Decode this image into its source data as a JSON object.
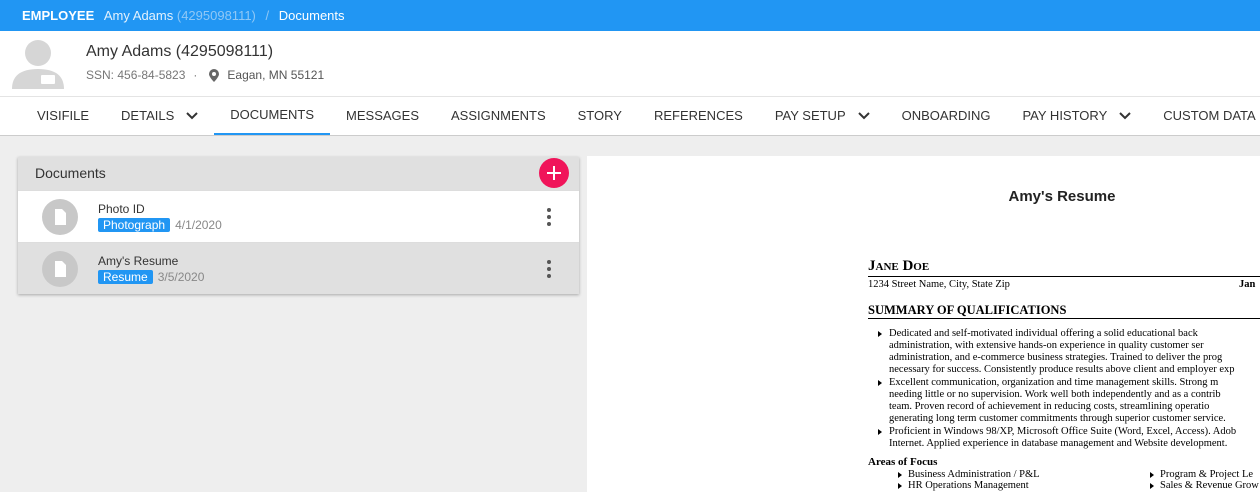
{
  "breadcrumb": {
    "section": "EMPLOYEE",
    "employee": "Amy Adams",
    "id": "(4295098111)",
    "separator": "/",
    "page": "Documents"
  },
  "employee": {
    "name": "Amy Adams (4295098111)",
    "ssn": "SSN: 456-84-5823",
    "dot": "·",
    "location": "Eagan, MN 55121"
  },
  "tabs": [
    {
      "label": "VISIFILE"
    },
    {
      "label": "DETAILS",
      "dropdown": true
    },
    {
      "label": "DOCUMENTS",
      "selected": true
    },
    {
      "label": "MESSAGES"
    },
    {
      "label": "ASSIGNMENTS"
    },
    {
      "label": "STORY"
    },
    {
      "label": "REFERENCES"
    },
    {
      "label": "PAY SETUP",
      "dropdown": true
    },
    {
      "label": "ONBOARDING"
    },
    {
      "label": "PAY HISTORY",
      "dropdown": true
    },
    {
      "label": "CUSTOM DATA"
    }
  ],
  "documents": {
    "title": "Documents",
    "items": [
      {
        "name": "Photo ID",
        "tag": "Photograph",
        "date": "4/1/2020"
      },
      {
        "name": "Amy's Resume",
        "tag": "Resume",
        "date": "3/5/2020",
        "selected": true
      }
    ]
  },
  "preview": {
    "title": "Amy's Resume",
    "resume": {
      "name": "Jane Doe",
      "address": "1234 Street Name, City, State  Zip",
      "address_right": "Jan",
      "summary_heading": "SUMMARY OF QUALIFICATIONS",
      "bullets": [
        [
          "Dedicated and self-motivated individual offering a solid educational back",
          "administration, with extensive hands-on experience in quality customer ser",
          "administration, and e-commerce business strategies. Trained to deliver the prog",
          "necessary for success. Consistently produce results above client and employer exp"
        ],
        [
          "Excellent communication, organization and time management skills. Strong m",
          "needing little or no supervision. Work well both independently and as a contrib",
          "team. Proven record of achievement in reducing costs, streamlining operatio",
          "generating long term customer commitments through superior customer service."
        ],
        [
          "Proficient in Windows 98/XP, Microsoft Office Suite (Word, Excel, Access). Adob",
          "Internet. Applied experience in database management and Website development."
        ]
      ],
      "focus_heading": "Areas of Focus",
      "focus_left": [
        "Business Administration / P&L",
        "HR Operations Management"
      ],
      "focus_right": [
        "Program & Project Le",
        "Sales & Revenue Grow"
      ]
    }
  }
}
